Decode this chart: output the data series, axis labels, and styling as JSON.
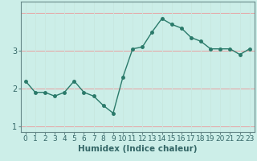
{
  "x": [
    0,
    1,
    2,
    3,
    4,
    5,
    6,
    7,
    8,
    9,
    10,
    11,
    12,
    13,
    14,
    15,
    16,
    17,
    18,
    19,
    20,
    21,
    22,
    23
  ],
  "y": [
    2.2,
    1.9,
    1.9,
    1.8,
    1.9,
    2.2,
    1.9,
    1.8,
    1.55,
    1.35,
    2.3,
    3.05,
    3.1,
    3.5,
    3.85,
    3.7,
    3.6,
    3.35,
    3.25,
    3.05,
    3.05,
    3.05,
    2.9,
    3.05
  ],
  "line_color": "#2a7a6a",
  "marker": "o",
  "marker_size": 2.5,
  "linewidth": 1.0,
  "bg_color": "#cceee8",
  "grid_color_h": "#e8a0a0",
  "grid_color_v": "#c8e8e0",
  "xlabel": "Humidex (Indice chaleur)",
  "xlabel_fontsize": 7.5,
  "xtick_labels": [
    "0",
    "1",
    "2",
    "3",
    "4",
    "5",
    "6",
    "7",
    "8",
    "9",
    "10",
    "11",
    "12",
    "13",
    "14",
    "15",
    "16",
    "17",
    "18",
    "19",
    "20",
    "21",
    "22",
    "23"
  ],
  "yticks": [
    1,
    2,
    3
  ],
  "ylim": [
    0.85,
    4.3
  ],
  "xlim": [
    -0.5,
    23.5
  ],
  "tick_fontsize": 6.5,
  "tick_color": "#336666",
  "spine_color": "#668888"
}
